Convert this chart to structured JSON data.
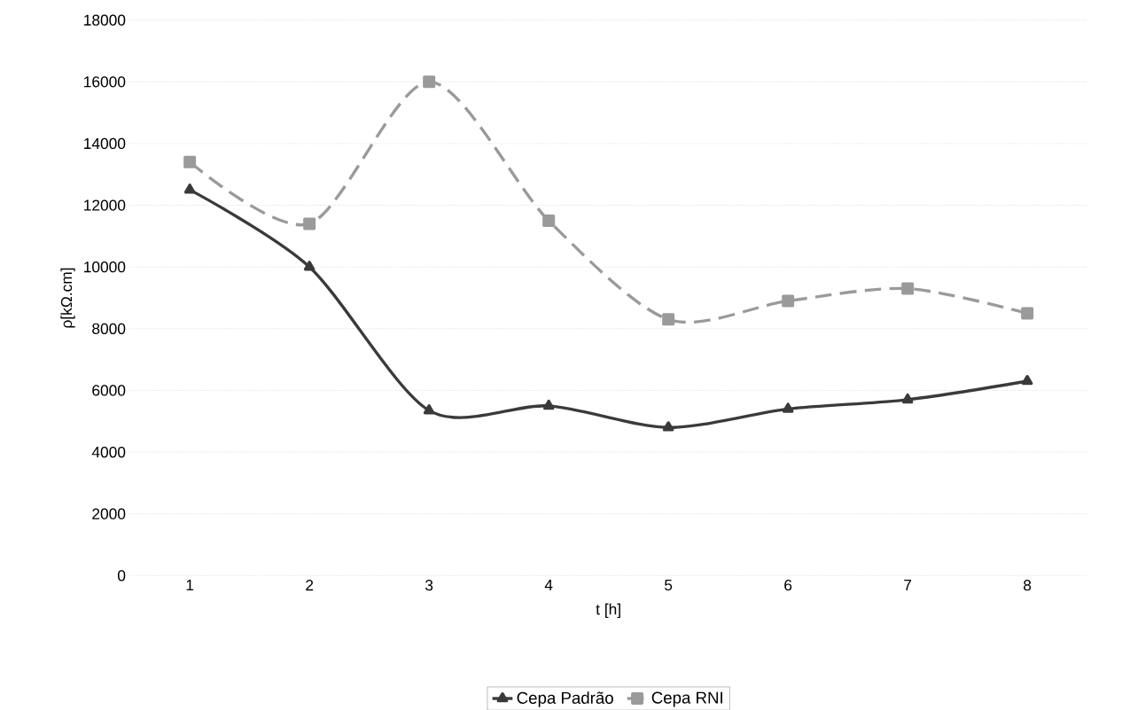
{
  "chart_data": {
    "type": "line",
    "xlabel": "t [h]",
    "ylabel": "ρ[kΩ.cm]",
    "categories": [
      "1",
      "2",
      "3",
      "4",
      "5",
      "6",
      "7",
      "8"
    ],
    "series": [
      {
        "name": "Cepa Padrão",
        "color": "#3a3a3a",
        "marker": "triangle",
        "line_style": "solid",
        "values": [
          12500,
          10000,
          5350,
          5500,
          4800,
          5400,
          5700,
          6300
        ]
      },
      {
        "name": "Cepa RNI",
        "color": "#9a9a9a",
        "marker": "square",
        "line_style": "dashed",
        "values": [
          13400,
          11400,
          16000,
          11500,
          8300,
          8900,
          9300,
          8500
        ]
      }
    ],
    "ylim": [
      0,
      18000
    ],
    "yticks": [
      0,
      2000,
      4000,
      6000,
      8000,
      10000,
      12000,
      14000,
      16000,
      18000
    ],
    "grid": "y",
    "legend": "bottom"
  }
}
